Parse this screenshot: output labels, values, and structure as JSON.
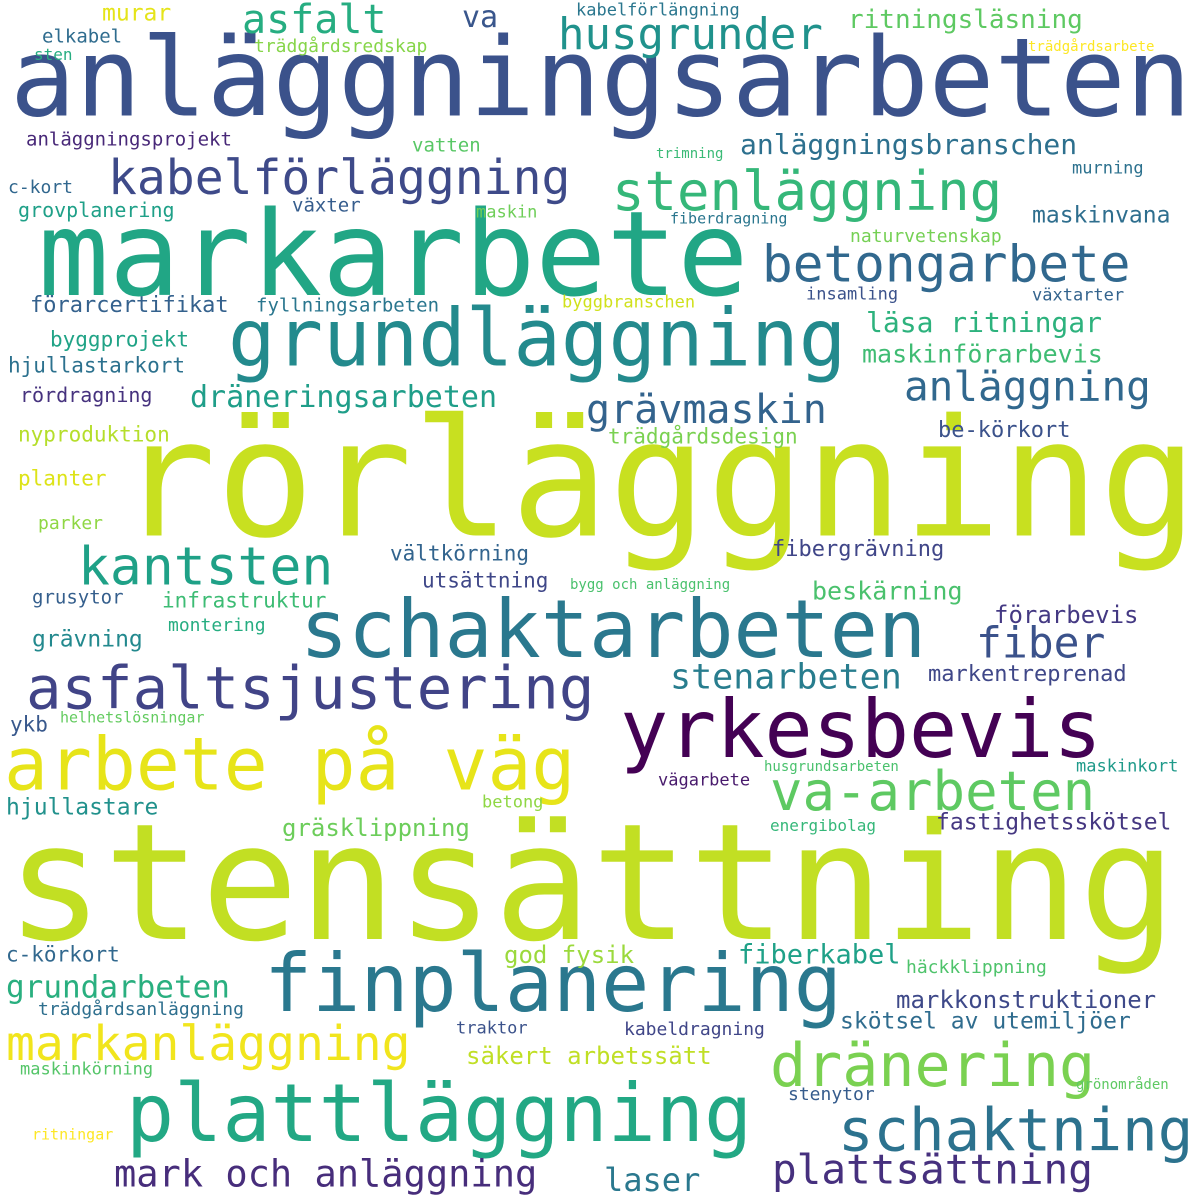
{
  "cloud": {
    "words": [
      {
        "text": "anläggningsarbeten",
        "color": "#3b528b"
      },
      {
        "text": "markarbete",
        "color": "#21a685"
      },
      {
        "text": "rörläggning",
        "color": "#c8e020"
      },
      {
        "text": "stensättning",
        "color": "#c2df23"
      },
      {
        "text": "grundläggning",
        "color": "#238a8d"
      },
      {
        "text": "schaktarbeten",
        "color": "#2a788e"
      },
      {
        "text": "yrkesbevis",
        "color": "#440154"
      },
      {
        "text": "arbete på väg",
        "color": "#e7e419"
      },
      {
        "text": "asfaltsjustering",
        "color": "#414487"
      },
      {
        "text": "finplanering",
        "color": "#2a788e"
      },
      {
        "text": "plattläggning",
        "color": "#22a884"
      },
      {
        "text": "kabelförläggning",
        "color": "#3e4a89"
      },
      {
        "text": "stenläggning",
        "color": "#35b779"
      },
      {
        "text": "betongarbete",
        "color": "#31688e"
      },
      {
        "text": "husgrunder",
        "color": "#20928c"
      },
      {
        "text": "asfalt",
        "color": "#26ad81"
      },
      {
        "text": "kantsten",
        "color": "#1fa187"
      },
      {
        "text": "va-arbeten",
        "color": "#5ec962"
      },
      {
        "text": "fiber",
        "color": "#3b528b"
      },
      {
        "text": "dränering",
        "color": "#7ad151"
      },
      {
        "text": "schaktning",
        "color": "#2c728e"
      },
      {
        "text": "markanläggning",
        "color": "#f1e51d"
      },
      {
        "text": "anläggning",
        "color": "#31688e"
      },
      {
        "text": "grävmaskin",
        "color": "#33638d"
      },
      {
        "text": "plattsättning",
        "color": "#46307e"
      },
      {
        "text": "mark och anläggning",
        "color": "#472d7b"
      },
      {
        "text": "stenarbeten",
        "color": "#287d8e"
      },
      {
        "text": "anläggningsbranschen",
        "color": "#2d708e"
      },
      {
        "text": "dräneringsarbeten",
        "color": "#1f9e89"
      },
      {
        "text": "grundarbeten",
        "color": "#29af7f"
      },
      {
        "text": "laser",
        "color": "#2a788e"
      },
      {
        "text": "va",
        "color": "#39568c"
      },
      {
        "text": "ritningsläsning",
        "color": "#5ec962"
      },
      {
        "text": "läsa ritningar",
        "color": "#2db27d"
      },
      {
        "text": "maskinförarbevis",
        "color": "#3fbc73"
      },
      {
        "text": "maskinvana",
        "color": "#2e6e8e"
      },
      {
        "text": "fiberkabel",
        "color": "#1fa188"
      },
      {
        "text": "god fysik",
        "color": "#9bd93c"
      },
      {
        "text": "säkert arbetssätt",
        "color": "#c0df25"
      },
      {
        "text": "skötsel av utemiljöer",
        "color": "#2f6c8e"
      },
      {
        "text": "markkonstruktioner",
        "color": "#3e4989"
      },
      {
        "text": "fastighetsskötsel",
        "color": "#453781"
      },
      {
        "text": "beskärning",
        "color": "#4ac16d"
      },
      {
        "text": "förarbevis",
        "color": "#443983"
      },
      {
        "text": "fibergrävning",
        "color": "#404688"
      },
      {
        "text": "markentreprenad",
        "color": "#3f4788"
      },
      {
        "text": "gräsklippning",
        "color": "#6ccd5a"
      },
      {
        "text": "vältkörning",
        "color": "#32648e"
      },
      {
        "text": "utsättning",
        "color": "#3f4788"
      },
      {
        "text": "infrastruktur",
        "color": "#3dbc74"
      },
      {
        "text": "grävning",
        "color": "#23898e"
      },
      {
        "text": "hjullastare",
        "color": "#21918c"
      },
      {
        "text": "förarcertifikat",
        "color": "#34618d"
      },
      {
        "text": "fyllningsarbeten",
        "color": "#2a768e"
      },
      {
        "text": "byggprojekt",
        "color": "#20a386"
      },
      {
        "text": "hjullastarkort",
        "color": "#2c718e"
      },
      {
        "text": "rördragning",
        "color": "#46327e"
      },
      {
        "text": "nyproduktion",
        "color": "#b5de2b"
      },
      {
        "text": "planter",
        "color": "#dde318"
      },
      {
        "text": "parker",
        "color": "#8fd744"
      },
      {
        "text": "grusytor",
        "color": "#355f8d"
      },
      {
        "text": "montering",
        "color": "#26ad81"
      },
      {
        "text": "ykb",
        "color": "#38588c"
      },
      {
        "text": "helhetslösningar",
        "color": "#63cb5f"
      },
      {
        "text": "murar",
        "color": "#e5e419"
      },
      {
        "text": "elkabel",
        "color": "#2f6c8e"
      },
      {
        "text": "sten",
        "color": "#27ad81"
      },
      {
        "text": "trädgårdsredskap",
        "color": "#86d549"
      },
      {
        "text": "kabelförlängning",
        "color": "#2a768e"
      },
      {
        "text": "trädgårdsarbete",
        "color": "#fde725"
      },
      {
        "text": "anläggningsprojekt",
        "color": "#482878"
      },
      {
        "text": "vatten",
        "color": "#58c765"
      },
      {
        "text": "c-kort",
        "color": "#31678e"
      },
      {
        "text": "grovplanering",
        "color": "#1fa088"
      },
      {
        "text": "växter",
        "color": "#365d8d"
      },
      {
        "text": "maskin",
        "color": "#6ece58"
      },
      {
        "text": "trimning",
        "color": "#3aba76"
      },
      {
        "text": "murning",
        "color": "#2c718e"
      },
      {
        "text": "fiberdragning",
        "color": "#2a768e"
      },
      {
        "text": "naturvetenskap",
        "color": "#75d054"
      },
      {
        "text": "insamling",
        "color": "#3b528b"
      },
      {
        "text": "växtarter",
        "color": "#33638d"
      },
      {
        "text": "byggbranschen",
        "color": "#d0e11c"
      },
      {
        "text": "trädgårdsdesign",
        "color": "#7ad151"
      },
      {
        "text": "be-körkort",
        "color": "#3b528b"
      },
      {
        "text": "bygg och anläggning",
        "color": "#4ac16d"
      },
      {
        "text": "vägarbete",
        "color": "#481a6c"
      },
      {
        "text": "husgrundsarbeten",
        "color": "#4ac16d"
      },
      {
        "text": "maskinkort",
        "color": "#1f9a8a"
      },
      {
        "text": "betong",
        "color": "#8fd744"
      },
      {
        "text": "energibolag",
        "color": "#35b779"
      },
      {
        "text": "c-körkort",
        "color": "#31688e"
      },
      {
        "text": "trädgårdsanläggning",
        "color": "#2e6f8e"
      },
      {
        "text": "traktor",
        "color": "#3b528b"
      },
      {
        "text": "kabeldragning",
        "color": "#404688"
      },
      {
        "text": "maskinkörning",
        "color": "#54c568"
      },
      {
        "text": "häckklippning",
        "color": "#4ec36b"
      },
      {
        "text": "stenytor",
        "color": "#365c8d"
      },
      {
        "text": "grönområden",
        "color": "#5ec962"
      },
      {
        "text": "ritningar",
        "color": "#fde725"
      }
    ]
  }
}
